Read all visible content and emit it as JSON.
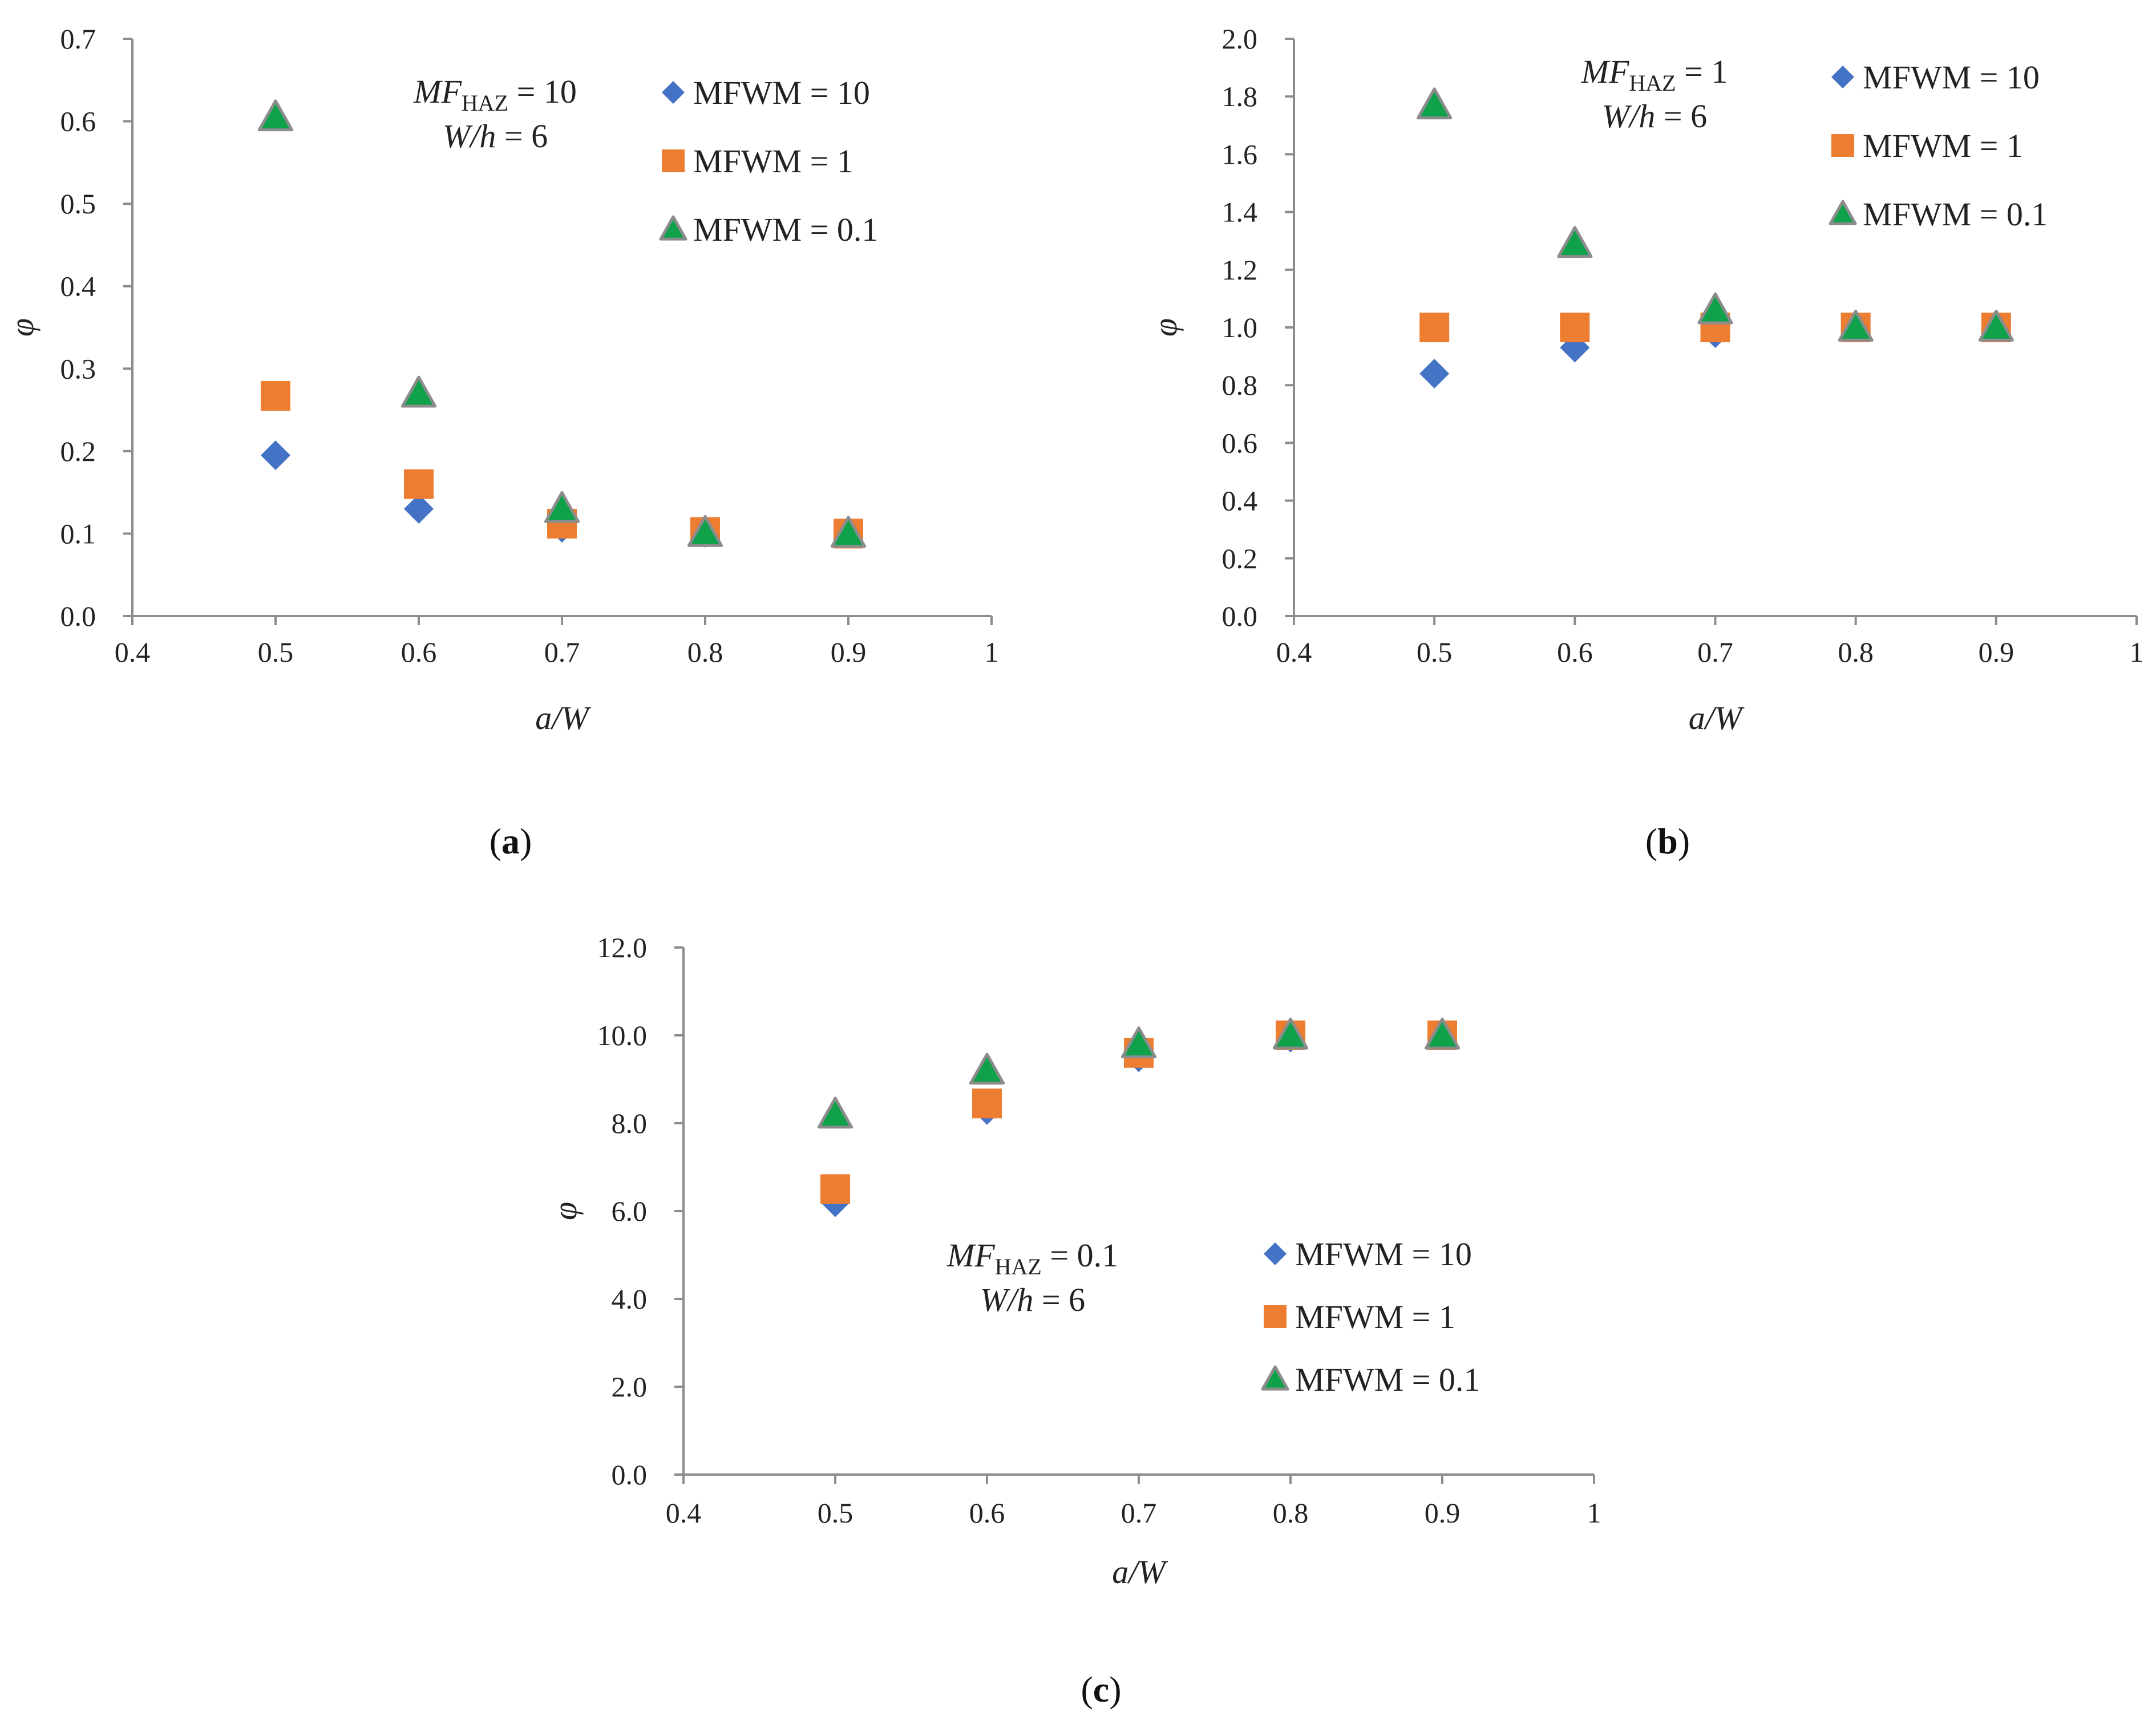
{
  "colors": {
    "diamond": "#4472C4",
    "square": "#ED7D31",
    "triangle": "#0FA24B",
    "triangle_edge": "#8C8C8C",
    "axis": "#8C8C8C"
  },
  "chart_data": [
    {
      "type": "scatter",
      "panel_label": "a",
      "xlabel": "a/W",
      "ylabel": "φ",
      "xlim": [
        0.4,
        1
      ],
      "ylim": [
        0,
        0.7
      ],
      "x_ticks": [
        0.4,
        0.5,
        0.6,
        0.7,
        0.8,
        0.9,
        1
      ],
      "x_tick_labels": [
        "0.4",
        "0.5",
        "0.6",
        "0.7",
        "0.8",
        "0.9",
        "1"
      ],
      "y_ticks": [
        0,
        0.1,
        0.2,
        0.3,
        0.4,
        0.5,
        0.6,
        0.7
      ],
      "y_tick_labels": [
        "0.0",
        "0.1",
        "0.2",
        "0.3",
        "0.4",
        "0.5",
        "0.6",
        "0.7"
      ],
      "annotation": {
        "mf": "MF",
        "sub": "HAZ",
        "mf_value": " = 10",
        "wh": "W/h",
        "wh_value": " = 6"
      },
      "x": [
        0.5,
        0.6,
        0.7,
        0.8,
        0.9
      ],
      "series": [
        {
          "name": "MFWM = 10",
          "marker": "diamond",
          "values": [
            0.195,
            0.13,
            0.107,
            0.101,
            0.1
          ]
        },
        {
          "name": "MFWM = 1",
          "marker": "square",
          "values": [
            0.267,
            0.16,
            0.112,
            0.102,
            0.1
          ]
        },
        {
          "name": "MFWM = 0.1",
          "marker": "triangle",
          "values": [
            0.605,
            0.27,
            0.13,
            0.101,
            0.1
          ]
        }
      ]
    },
    {
      "type": "scatter",
      "panel_label": "b",
      "xlabel": "a/W",
      "ylabel": "φ",
      "xlim": [
        0.4,
        1
      ],
      "ylim": [
        0,
        2
      ],
      "x_ticks": [
        0.4,
        0.5,
        0.6,
        0.7,
        0.8,
        0.9,
        1
      ],
      "x_tick_labels": [
        "0.4",
        "0.5",
        "0.6",
        "0.7",
        "0.8",
        "0.9",
        "1"
      ],
      "y_ticks": [
        0,
        0.2,
        0.4,
        0.6,
        0.8,
        1,
        1.2,
        1.4,
        1.6,
        1.8,
        2
      ],
      "y_tick_labels": [
        "0.0",
        "0.2",
        "0.4",
        "0.6",
        "0.8",
        "1.0",
        "1.2",
        "1.4",
        "1.6",
        "1.8",
        "2.0"
      ],
      "annotation": {
        "mf": "MF",
        "sub": "HAZ",
        "mf_value": " = 1",
        "wh": "W/h",
        "wh_value": " = 6"
      },
      "x": [
        0.5,
        0.6,
        0.7,
        0.8,
        0.9
      ],
      "series": [
        {
          "name": "MFWM = 10",
          "marker": "diamond",
          "values": [
            0.84,
            0.93,
            0.98,
            1.0,
            1.0
          ]
        },
        {
          "name": "MFWM = 1",
          "marker": "square",
          "values": [
            1.0,
            1.0,
            1.0,
            1.0,
            1.0
          ]
        },
        {
          "name": "MFWM = 0.1",
          "marker": "triangle",
          "values": [
            1.77,
            1.29,
            1.06,
            1.0,
            1.0
          ]
        }
      ]
    },
    {
      "type": "scatter",
      "panel_label": "c",
      "xlabel": "a/W",
      "ylabel": "φ",
      "xlim": [
        0.4,
        1
      ],
      "ylim": [
        0,
        12
      ],
      "x_ticks": [
        0.4,
        0.5,
        0.6,
        0.7,
        0.8,
        0.9,
        1
      ],
      "x_tick_labels": [
        "0.4",
        "0.5",
        "0.6",
        "0.7",
        "0.8",
        "0.9",
        "1"
      ],
      "y_ticks": [
        0,
        2,
        4,
        6,
        8,
        10,
        12
      ],
      "y_tick_labels": [
        "0.0",
        "2.0",
        "4.0",
        "6.0",
        "8.0",
        "10.0",
        "12.0"
      ],
      "annotation": {
        "mf": "MF",
        "sub": "HAZ",
        "mf_value": " = 0.1",
        "wh": "W/h",
        "wh_value": " = 6"
      },
      "x": [
        0.5,
        0.6,
        0.7,
        0.8,
        0.9
      ],
      "series": [
        {
          "name": "MFWM = 10",
          "marker": "diamond",
          "values": [
            6.2,
            8.3,
            9.5,
            9.95,
            10.0
          ]
        },
        {
          "name": "MFWM = 1",
          "marker": "square",
          "values": [
            6.5,
            8.45,
            9.6,
            10.0,
            10.0
          ]
        },
        {
          "name": "MFWM = 0.1",
          "marker": "triangle",
          "values": [
            8.2,
            9.2,
            9.8,
            10.0,
            10.0
          ]
        }
      ]
    }
  ]
}
